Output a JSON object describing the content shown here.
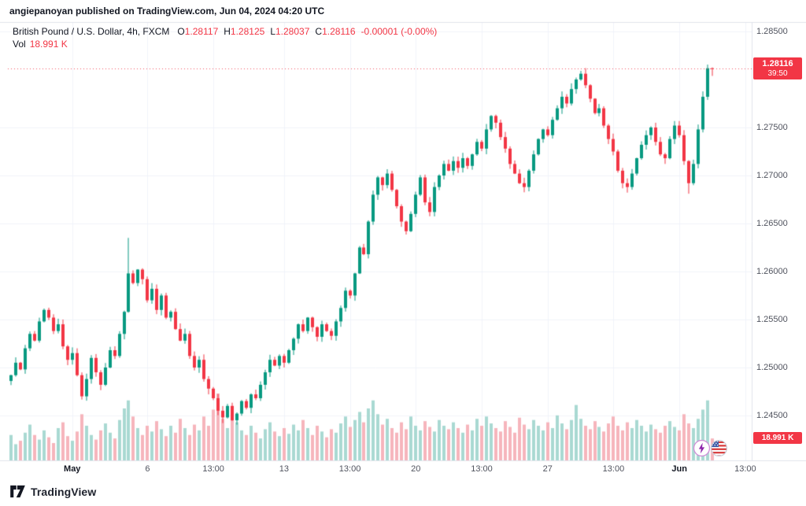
{
  "attribution": "angiepanoyan published on TradingView.com, Jun 04, 2024 04:20 UTC",
  "header": {
    "symbol_title": "British Pound / U.S. Dollar, 4h, FXCM",
    "ohlc": {
      "o_label": "O",
      "o": "1.28117",
      "h_label": "H",
      "h": "1.28125",
      "l_label": "L",
      "l": "1.28037",
      "c_label": "C",
      "c": "1.28116",
      "change": "-0.00001 (-0.00%)"
    },
    "vol_label": "Vol",
    "vol_value": "18.991 K"
  },
  "price_axis": {
    "labels": [
      {
        "text": "1.28500",
        "price": 1.285
      },
      {
        "text": "1.27500",
        "price": 1.275
      },
      {
        "text": "1.27000",
        "price": 1.27
      },
      {
        "text": "1.26500",
        "price": 1.265
      },
      {
        "text": "1.26000",
        "price": 1.26
      },
      {
        "text": "1.25500",
        "price": 1.255
      },
      {
        "text": "1.25000",
        "price": 1.25
      },
      {
        "text": "1.24500",
        "price": 1.245
      }
    ],
    "price_line_label": "1.28116",
    "countdown": "39:50",
    "vol_badge": "18.991 K"
  },
  "time_axis": {
    "labels": [
      {
        "text": "May",
        "i": 13,
        "bold": true
      },
      {
        "text": "6",
        "i": 29,
        "bold": false
      },
      {
        "text": "13:00",
        "i": 43,
        "bold": false
      },
      {
        "text": "13",
        "i": 58,
        "bold": false
      },
      {
        "text": "13:00",
        "i": 72,
        "bold": false
      },
      {
        "text": "20",
        "i": 86,
        "bold": false
      },
      {
        "text": "13:00",
        "i": 100,
        "bold": false
      },
      {
        "text": "27",
        "i": 114,
        "bold": false
      },
      {
        "text": "13:00",
        "i": 128,
        "bold": false
      },
      {
        "text": "Jun",
        "i": 142,
        "bold": true
      },
      {
        "text": "13:00",
        "i": 156,
        "bold": false
      }
    ]
  },
  "logo": {
    "text": "TradingView"
  },
  "icons": {
    "lightning": "lightning-icon",
    "us_flag": "us-flag-icon",
    "logo": "tradingview-logo-icon"
  },
  "chart_data": {
    "type": "candlestick",
    "title": "British Pound / U.S. Dollar, 4h, FXCM",
    "symbol": "GBPUSD",
    "timeframe": "4h",
    "exchange": "FXCM",
    "last_candle": {
      "open": 1.28117,
      "high": 1.28125,
      "low": 1.28037,
      "close": 1.28116,
      "change": "-0.00001",
      "change_pct": "-0.00%"
    },
    "price_line": 1.28116,
    "countdown": "39:50",
    "current_volume_k": 18.991,
    "visible_price_range": [
      1.2403,
      1.286
    ],
    "legend_position": "top-left",
    "grid": true,
    "first_open": 1.2486,
    "closes": [
      1.2492,
      1.2505,
      1.2498,
      1.252,
      1.2535,
      1.2528,
      1.2548,
      1.256,
      1.2552,
      1.2538,
      1.2545,
      1.2522,
      1.2508,
      1.2515,
      1.2492,
      1.247,
      1.2488,
      1.251,
      1.2495,
      1.2482,
      1.25,
      1.2518,
      1.2512,
      1.2535,
      1.2558,
      1.2598,
      1.2588,
      1.2602,
      1.2592,
      1.257,
      1.2582,
      1.256,
      1.2575,
      1.2552,
      1.2558,
      1.254,
      1.2528,
      1.2535,
      1.2512,
      1.25,
      1.2508,
      1.2488,
      1.2478,
      1.2468,
      1.2455,
      1.2448,
      1.246,
      1.2445,
      1.2452,
      1.2465,
      1.2458,
      1.2472,
      1.2468,
      1.2482,
      1.2495,
      1.2508,
      1.2502,
      1.2512,
      1.2505,
      1.2518,
      1.253,
      1.2545,
      1.2538,
      1.2552,
      1.2542,
      1.2532,
      1.2545,
      1.2538,
      1.2533,
      1.2548,
      1.2562,
      1.258,
      1.2575,
      1.2598,
      1.2625,
      1.2618,
      1.2652,
      1.268,
      1.2698,
      1.269,
      1.2702,
      1.2685,
      1.2668,
      1.2652,
      1.2642,
      1.266,
      1.268,
      1.2698,
      1.2672,
      1.2662,
      1.2688,
      1.27,
      1.2712,
      1.2705,
      1.2715,
      1.2708,
      1.2718,
      1.271,
      1.2722,
      1.2735,
      1.2728,
      1.2748,
      1.2762,
      1.2755,
      1.274,
      1.2728,
      1.2712,
      1.2702,
      1.2692,
      1.2688,
      1.2705,
      1.2722,
      1.2738,
      1.2748,
      1.2742,
      1.2758,
      1.277,
      1.2782,
      1.2775,
      1.279,
      1.28,
      1.2806,
      1.2794,
      1.278,
      1.2765,
      1.277,
      1.2752,
      1.2738,
      1.2725,
      1.2705,
      1.2692,
      1.2688,
      1.2702,
      1.2718,
      1.2732,
      1.2742,
      1.275,
      1.2735,
      1.2722,
      1.2718,
      1.2738,
      1.2752,
      1.2742,
      1.2715,
      1.2692,
      1.2712,
      1.2748,
      1.2782,
      1.28117,
      1.28116
    ],
    "volumes_k": [
      22,
      14,
      17,
      24,
      31,
      22,
      18,
      26,
      20,
      15,
      28,
      33,
      21,
      17,
      25,
      40,
      30,
      22,
      18,
      26,
      32,
      24,
      19,
      35,
      45,
      52,
      38,
      28,
      22,
      30,
      25,
      34,
      27,
      21,
      30,
      24,
      36,
      28,
      22,
      31,
      26,
      38,
      30,
      44,
      58,
      36,
      28,
      42,
      33,
      26,
      22,
      30,
      24,
      19,
      27,
      33,
      25,
      21,
      28,
      23,
      31,
      26,
      35,
      28,
      22,
      30,
      25,
      20,
      27,
      24,
      32,
      38,
      29,
      35,
      42,
      33,
      45,
      52,
      40,
      31,
      36,
      28,
      24,
      33,
      27,
      38,
      30,
      26,
      34,
      29,
      25,
      35,
      30,
      27,
      33,
      28,
      24,
      31,
      26,
      36,
      30,
      38,
      32,
      28,
      25,
      34,
      29,
      24,
      37,
      31,
      27,
      35,
      30,
      26,
      33,
      28,
      39,
      32,
      27,
      35,
      48,
      36,
      30,
      27,
      34,
      29,
      25,
      32,
      38,
      30,
      26,
      33,
      28,
      35,
      30,
      25,
      31,
      27,
      24,
      30,
      34,
      29,
      26,
      40,
      32,
      28,
      36,
      44,
      52,
      18.991
    ],
    "overrides": {
      "25": {
        "h": 1.2635
      },
      "121": {
        "h": 1.2809
      },
      "144": {
        "l": 1.2681
      },
      "149": {
        "h": 1.28125,
        "l": 1.28037
      }
    },
    "colors": {
      "up": "#089981",
      "down": "#f23645",
      "vol_up": "#a9d9d2",
      "vol_down": "#f6b5bc",
      "grid": "#f0f3fa",
      "frame": "#e0e3eb",
      "price_label_bg": "#f23645",
      "text": "#131722",
      "axis_text": "#50535e"
    }
  }
}
